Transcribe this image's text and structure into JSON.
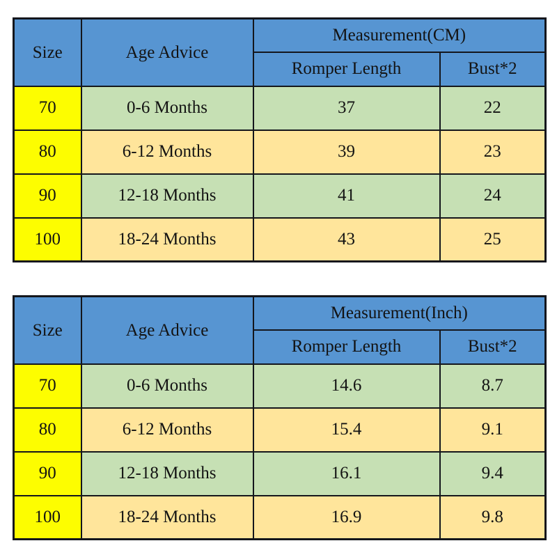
{
  "colors": {
    "header_blue": "#5795D2",
    "row_green": "#C6E0B4",
    "row_tan": "#FFE59B",
    "size_yellow": "#FDFD00",
    "border_dark": "#14161C",
    "background": "#FFFFFF"
  },
  "tables": [
    {
      "unit": "CM",
      "headers": {
        "size": "Size",
        "age": "Age Advice",
        "measurement": "Measurement(CM)",
        "romper": "Romper Length",
        "bust": "Bust*2"
      },
      "rows": [
        {
          "size": "70",
          "age": "0-6 Months",
          "romper": "37",
          "bust": "22"
        },
        {
          "size": "80",
          "age": "6-12 Months",
          "romper": "39",
          "bust": "23"
        },
        {
          "size": "90",
          "age": "12-18 Months",
          "romper": "41",
          "bust": "24"
        },
        {
          "size": "100",
          "age": "18-24 Months",
          "romper": "43",
          "bust": "25"
        }
      ]
    },
    {
      "unit": "Inch",
      "headers": {
        "size": "Size",
        "age": "Age Advice",
        "measurement": "Measurement(Inch)",
        "romper": "Romper Length",
        "bust": "Bust*2"
      },
      "rows": [
        {
          "size": "70",
          "age": "0-6 Months",
          "romper": "14.6",
          "bust": "8.7"
        },
        {
          "size": "80",
          "age": "6-12 Months",
          "romper": "15.4",
          "bust": "9.1"
        },
        {
          "size": "90",
          "age": "12-18 Months",
          "romper": "16.1",
          "bust": "9.4"
        },
        {
          "size": "100",
          "age": "18-24 Months",
          "romper": "16.9",
          "bust": "9.8"
        }
      ]
    }
  ],
  "chart_data": [
    {
      "type": "table",
      "title": "Measurement(CM)",
      "columns": [
        "Size",
        "Age Advice",
        "Romper Length",
        "Bust*2"
      ],
      "rows": [
        [
          "70",
          "0-6 Months",
          37,
          22
        ],
        [
          "80",
          "6-12 Months",
          39,
          23
        ],
        [
          "90",
          "12-18 Months",
          41,
          24
        ],
        [
          "100",
          "18-24 Months",
          43,
          25
        ]
      ]
    },
    {
      "type": "table",
      "title": "Measurement(Inch)",
      "columns": [
        "Size",
        "Age Advice",
        "Romper Length",
        "Bust*2"
      ],
      "rows": [
        [
          "70",
          "0-6 Months",
          14.6,
          8.7
        ],
        [
          "80",
          "6-12 Months",
          15.4,
          9.1
        ],
        [
          "90",
          "12-18 Months",
          16.1,
          9.4
        ],
        [
          "100",
          "18-24 Months",
          16.9,
          9.8
        ]
      ]
    }
  ]
}
